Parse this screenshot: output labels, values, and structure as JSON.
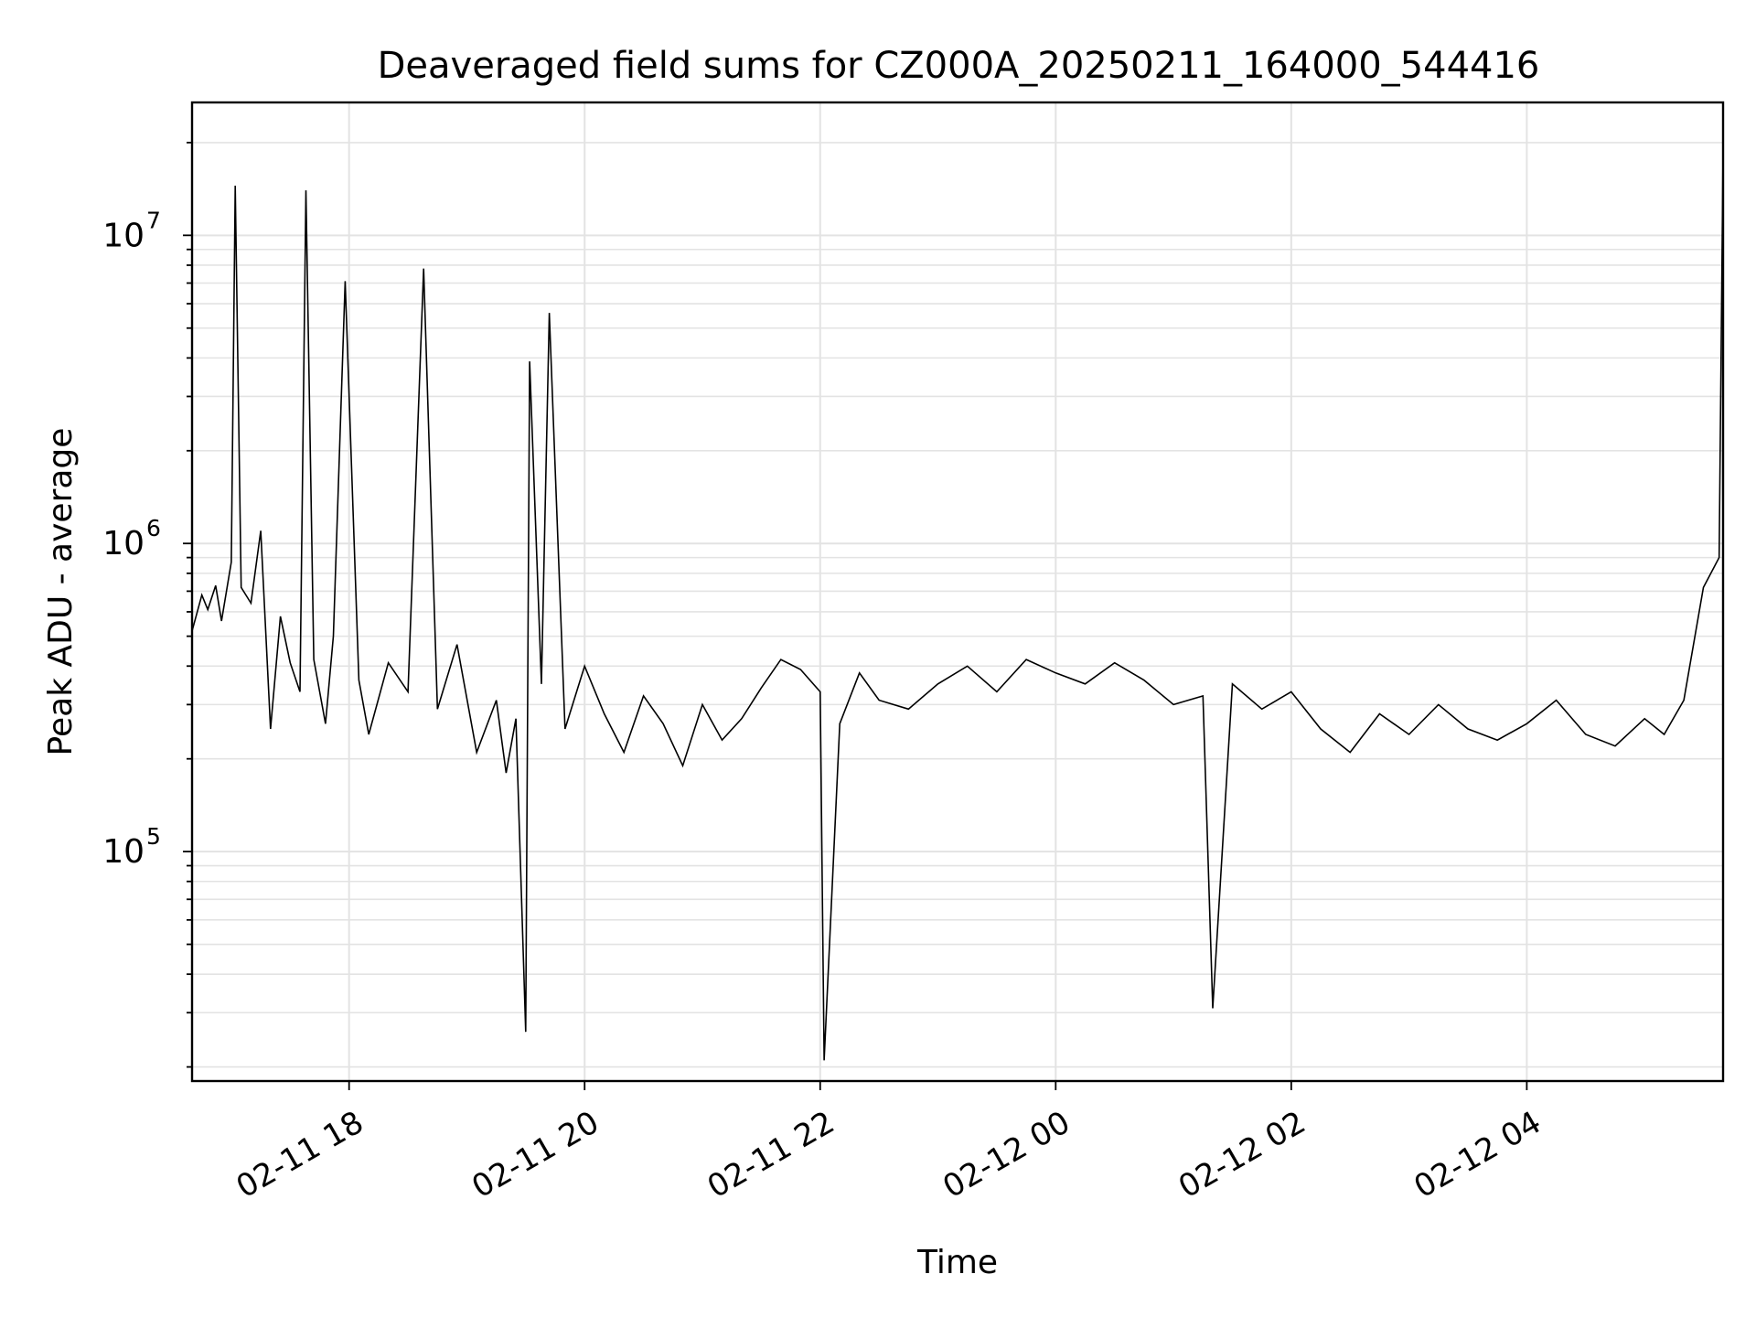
{
  "chart_data": {
    "type": "line",
    "title": "Deaveraged field sums for CZ000A_20250211_164000_544416",
    "xlabel": "Time",
    "ylabel": "Peak ADU - average",
    "yscale": "log",
    "ylim": [
      18000,
      27000000
    ],
    "xlim": [
      "2025-02-11T16:40:00",
      "2025-02-12T05:40:00"
    ],
    "x_ticks": [
      "2025-02-11T18:00",
      "2025-02-11T20:00",
      "2025-02-11T22:00",
      "2025-02-12T00:00",
      "2025-02-12T02:00",
      "2025-02-12T04:00"
    ],
    "x_tick_labels": [
      "02-11 18",
      "02-11 20",
      "02-11 22",
      "02-12 00",
      "02-12 02",
      "02-12 04"
    ],
    "y_ticks": [
      100000,
      1000000,
      10000000
    ],
    "y_tick_labels": [
      {
        "base": "10",
        "exp": "5"
      },
      {
        "base": "10",
        "exp": "6"
      },
      {
        "base": "10",
        "exp": "7"
      }
    ],
    "grid": true,
    "line_color": "#000000",
    "series": [
      {
        "x": [
          "2025-02-11T16:40",
          "2025-02-11T16:45",
          "2025-02-11T16:48",
          "2025-02-11T16:52",
          "2025-02-11T16:55",
          "2025-02-11T17:00",
          "2025-02-11T17:02",
          "2025-02-11T17:05",
          "2025-02-11T17:10",
          "2025-02-11T17:15",
          "2025-02-11T17:20",
          "2025-02-11T17:25",
          "2025-02-11T17:30",
          "2025-02-11T17:35",
          "2025-02-11T17:38",
          "2025-02-11T17:42",
          "2025-02-11T17:48",
          "2025-02-11T17:52",
          "2025-02-11T17:58",
          "2025-02-11T18:05",
          "2025-02-11T18:10",
          "2025-02-11T18:20",
          "2025-02-11T18:30",
          "2025-02-11T18:38",
          "2025-02-11T18:45",
          "2025-02-11T18:55",
          "2025-02-11T19:05",
          "2025-02-11T19:15",
          "2025-02-11T19:20",
          "2025-02-11T19:25",
          "2025-02-11T19:30",
          "2025-02-11T19:32",
          "2025-02-11T19:38",
          "2025-02-11T19:42",
          "2025-02-11T19:50",
          "2025-02-11T20:00",
          "2025-02-11T20:10",
          "2025-02-11T20:20",
          "2025-02-11T20:30",
          "2025-02-11T20:40",
          "2025-02-11T20:50",
          "2025-02-11T21:00",
          "2025-02-11T21:10",
          "2025-02-11T21:20",
          "2025-02-11T21:30",
          "2025-02-11T21:40",
          "2025-02-11T21:50",
          "2025-02-11T22:00",
          "2025-02-11T22:02",
          "2025-02-11T22:10",
          "2025-02-11T22:20",
          "2025-02-11T22:30",
          "2025-02-11T22:45",
          "2025-02-11T23:00",
          "2025-02-11T23:15",
          "2025-02-11T23:30",
          "2025-02-11T23:45",
          "2025-02-12T00:00",
          "2025-02-12T00:15",
          "2025-02-12T00:30",
          "2025-02-12T00:45",
          "2025-02-12T01:00",
          "2025-02-12T01:15",
          "2025-02-12T01:20",
          "2025-02-12T01:30",
          "2025-02-12T01:45",
          "2025-02-12T02:00",
          "2025-02-12T02:15",
          "2025-02-12T02:30",
          "2025-02-12T02:45",
          "2025-02-12T03:00",
          "2025-02-12T03:15",
          "2025-02-12T03:30",
          "2025-02-12T03:45",
          "2025-02-12T04:00",
          "2025-02-12T04:15",
          "2025-02-12T04:30",
          "2025-02-12T04:45",
          "2025-02-12T05:00",
          "2025-02-12T05:10",
          "2025-02-12T05:20",
          "2025-02-12T05:30",
          "2025-02-12T05:38",
          "2025-02-12T05:40"
        ],
        "y": [
          520000,
          680000,
          610000,
          730000,
          560000,
          870000,
          14500000,
          720000,
          640000,
          1100000,
          250000,
          580000,
          410000,
          330000,
          14000000,
          420000,
          260000,
          500000,
          7100000,
          360000,
          240000,
          410000,
          330000,
          7800000,
          290000,
          470000,
          210000,
          310000,
          180000,
          270000,
          26000,
          3900000,
          350000,
          5600000,
          250000,
          400000,
          280000,
          210000,
          320000,
          260000,
          190000,
          300000,
          230000,
          270000,
          340000,
          420000,
          390000,
          330000,
          21000,
          260000,
          380000,
          310000,
          290000,
          350000,
          400000,
          330000,
          420000,
          380000,
          350000,
          410000,
          360000,
          300000,
          320000,
          31000,
          350000,
          290000,
          330000,
          250000,
          210000,
          280000,
          240000,
          300000,
          250000,
          230000,
          260000,
          310000,
          240000,
          220000,
          270000,
          240000,
          310000,
          720000,
          900000,
          19000000
        ]
      }
    ]
  }
}
